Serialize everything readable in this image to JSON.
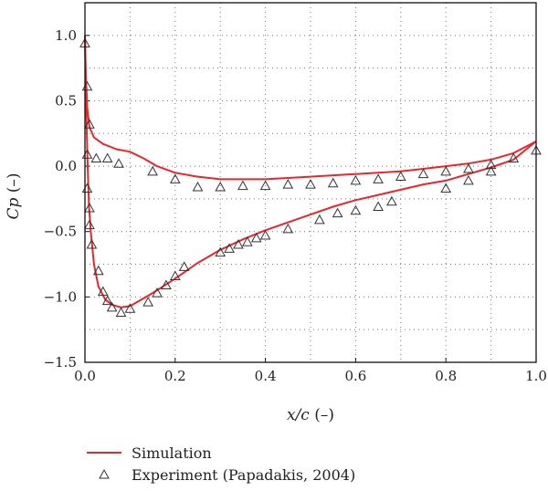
{
  "chart_data": {
    "type": "line",
    "xlabel": {
      "main": "x/c",
      "unit": " (–)"
    },
    "ylabel": {
      "main": "Cp",
      "unit": " (–)"
    },
    "xlim": [
      0.0,
      1.0
    ],
    "ylim": [
      -1.5,
      1.25
    ],
    "xticks": [
      0.0,
      0.2,
      0.4,
      0.6,
      0.8,
      1.0
    ],
    "xtick_labels": [
      "0.0",
      "0.2",
      "0.4",
      "0.6",
      "0.8",
      "1.0"
    ],
    "yticks": [
      -1.5,
      -1.0,
      -0.5,
      0.0,
      0.5,
      1.0
    ],
    "ytick_labels": [
      "−1.5",
      "−1.0",
      "−0.5",
      "0.0",
      "0.5",
      "1.0"
    ],
    "grid": "dotted",
    "legend_position": "bottom-left",
    "series": [
      {
        "name": "Simulation",
        "type": "line",
        "color": "#e8262c",
        "segments": [
          [
            [
              0.0,
              1.0
            ],
            [
              0.002,
              0.7
            ],
            [
              0.005,
              0.45
            ],
            [
              0.01,
              0.3
            ],
            [
              0.02,
              0.22
            ],
            [
              0.04,
              0.17
            ],
            [
              0.07,
              0.13
            ],
            [
              0.1,
              0.11
            ],
            [
              0.13,
              0.06
            ],
            [
              0.16,
              0.0
            ],
            [
              0.2,
              -0.05
            ],
            [
              0.25,
              -0.08
            ],
            [
              0.3,
              -0.1
            ],
            [
              0.35,
              -0.1
            ],
            [
              0.4,
              -0.1
            ],
            [
              0.45,
              -0.09
            ],
            [
              0.5,
              -0.08
            ],
            [
              0.55,
              -0.07
            ],
            [
              0.6,
              -0.06
            ],
            [
              0.65,
              -0.05
            ],
            [
              0.7,
              -0.04
            ],
            [
              0.75,
              -0.02
            ],
            [
              0.8,
              0.0
            ],
            [
              0.85,
              0.02
            ],
            [
              0.9,
              0.05
            ],
            [
              0.95,
              0.1
            ],
            [
              1.0,
              0.19
            ]
          ],
          [
            [
              0.0,
              1.0
            ],
            [
              0.003,
              0.4
            ],
            [
              0.006,
              0.0
            ],
            [
              0.009,
              -0.3
            ],
            [
              0.013,
              -0.5
            ],
            [
              0.02,
              -0.75
            ],
            [
              0.03,
              -0.92
            ],
            [
              0.045,
              -1.02
            ],
            [
              0.06,
              -1.06
            ],
            [
              0.08,
              -1.08
            ],
            [
              0.1,
              -1.07
            ],
            [
              0.12,
              -1.03
            ],
            [
              0.15,
              -0.97
            ],
            [
              0.2,
              -0.86
            ],
            [
              0.25,
              -0.74
            ],
            [
              0.3,
              -0.64
            ],
            [
              0.35,
              -0.56
            ],
            [
              0.4,
              -0.49
            ],
            [
              0.45,
              -0.43
            ],
            [
              0.5,
              -0.37
            ],
            [
              0.55,
              -0.31
            ],
            [
              0.6,
              -0.26
            ],
            [
              0.65,
              -0.22
            ],
            [
              0.7,
              -0.18
            ],
            [
              0.75,
              -0.14
            ],
            [
              0.8,
              -0.11
            ],
            [
              0.85,
              -0.06
            ],
            [
              0.9,
              -0.01
            ],
            [
              0.95,
              0.05
            ],
            [
              1.0,
              0.19
            ]
          ]
        ]
      },
      {
        "name": "Experiment (Papadakis, 2004)",
        "type": "scatter",
        "marker": "triangle",
        "color": "#333333",
        "points": [
          [
            0.0,
            0.94
          ],
          [
            0.005,
            0.61
          ],
          [
            0.01,
            0.32
          ],
          [
            0.005,
            0.09
          ],
          [
            0.025,
            0.06
          ],
          [
            0.05,
            0.06
          ],
          [
            0.075,
            0.02
          ],
          [
            0.15,
            -0.04
          ],
          [
            0.2,
            -0.1
          ],
          [
            0.25,
            -0.16
          ],
          [
            0.3,
            -0.16
          ],
          [
            0.35,
            -0.15
          ],
          [
            0.4,
            -0.15
          ],
          [
            0.45,
            -0.14
          ],
          [
            0.5,
            -0.14
          ],
          [
            0.55,
            -0.13
          ],
          [
            0.6,
            -0.11
          ],
          [
            0.65,
            -0.1
          ],
          [
            0.7,
            -0.08
          ],
          [
            0.75,
            -0.06
          ],
          [
            0.8,
            -0.04
          ],
          [
            0.85,
            -0.02
          ],
          [
            0.9,
            0.01
          ],
          [
            0.95,
            0.06
          ],
          [
            1.0,
            0.12
          ],
          [
            0.005,
            -0.17
          ],
          [
            0.01,
            -0.32
          ],
          [
            0.01,
            -0.45
          ],
          [
            0.015,
            -0.6
          ],
          [
            0.03,
            -0.8
          ],
          [
            0.04,
            -0.96
          ],
          [
            0.05,
            -1.03
          ],
          [
            0.06,
            -1.08
          ],
          [
            0.08,
            -1.12
          ],
          [
            0.1,
            -1.09
          ],
          [
            0.14,
            -1.04
          ],
          [
            0.16,
            -0.97
          ],
          [
            0.18,
            -0.91
          ],
          [
            0.2,
            -0.84
          ],
          [
            0.22,
            -0.77
          ],
          [
            0.3,
            -0.66
          ],
          [
            0.32,
            -0.63
          ],
          [
            0.34,
            -0.6
          ],
          [
            0.36,
            -0.58
          ],
          [
            0.38,
            -0.55
          ],
          [
            0.4,
            -0.53
          ],
          [
            0.45,
            -0.48
          ],
          [
            0.52,
            -0.41
          ],
          [
            0.56,
            -0.36
          ],
          [
            0.6,
            -0.34
          ],
          [
            0.65,
            -0.31
          ],
          [
            0.68,
            -0.27
          ],
          [
            0.8,
            -0.17
          ],
          [
            0.85,
            -0.11
          ],
          [
            0.9,
            -0.04
          ]
        ]
      }
    ]
  }
}
